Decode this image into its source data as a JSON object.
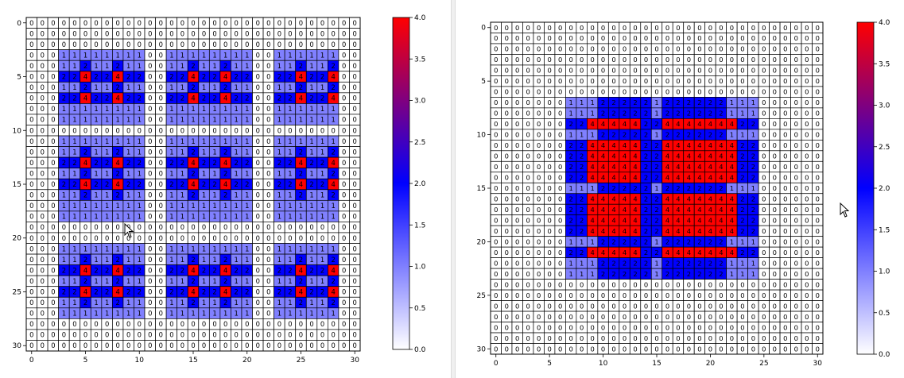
{
  "colors": {
    "cmap": [
      "#ffffff",
      "#0000ff",
      "#ff0000"
    ],
    "grid": "#000000",
    "text": "#000000",
    "divider": "#f0f0f0"
  },
  "chart_data": [
    {
      "type": "heatmap",
      "title": "",
      "xlabel": "",
      "ylabel": "",
      "rows": 31,
      "cols": 31,
      "xticks": [
        0,
        5,
        10,
        15,
        20,
        25,
        30
      ],
      "yticks": [
        0,
        5,
        10,
        15,
        20,
        25,
        30
      ],
      "vmin": 0,
      "vmax": 4,
      "annotated": true,
      "colorbar": {
        "ticks": [
          "0.0",
          "0.5",
          "1.0",
          "1.5",
          "2.0",
          "2.5",
          "3.0",
          "3.5",
          "4.0"
        ],
        "colormap": "white-blue-red"
      },
      "grid_rows": [
        "0000000000000000000000000000000",
        "0000000000000000000000000000000",
        "0000000000000000000000000000000",
        "0001111111100111111110011111100",
        "0001121121100112112110011211200",
        "0002242242200224224220022422400",
        "0001121121100112112110011211200",
        "0002242242200224224220022422400",
        "0001111111100111111110011111100",
        "0001111111100111111110011111100",
        "0000000000000000000000000000000",
        "0001111111100111111110011111100",
        "0001121121100112112110011211200",
        "0002242242200224224220022422400",
        "0001121121100112112110011211200",
        "0002242242200224224220022422400",
        "0001121121100112112110011211200",
        "0001111111100111111110011111100",
        "0001111111100111111110011111100",
        "0000000000000000000000000000000",
        "0000000000000000000000000000000",
        "0001111111100111111110011111100",
        "0001121121100112112110011211200",
        "0002242242200224224220022422400",
        "0001121121100112112110011211200",
        "0002242242200224224220022422400",
        "0001121121100112112110011211200",
        "0001111111100111111110011111100",
        "0000000000000000000000000000000",
        "0000000000000000000000000000000",
        "0000000000000000000000000000000"
      ]
    },
    {
      "type": "heatmap",
      "title": "",
      "xlabel": "",
      "ylabel": "",
      "rows": 31,
      "cols": 31,
      "xticks": [
        0,
        5,
        10,
        15,
        20,
        25,
        30
      ],
      "yticks": [
        0,
        5,
        10,
        15,
        20,
        25,
        30
      ],
      "vmin": 0,
      "vmax": 4,
      "annotated": true,
      "colorbar": {
        "ticks": [
          "0.0",
          "0.5",
          "1.0",
          "1.5",
          "2.0",
          "2.5",
          "3.0",
          "3.5",
          "4.0"
        ],
        "colormap": "white-blue-red"
      },
      "grid_rows": [
        "0000000000000000000000000000000",
        "0000000000000000000000000000000",
        "0000000000000000000000000000000",
        "0000000000000000000000000000000",
        "0000000000000000000000000000000",
        "0000000000000000000000000000000",
        "0000000000000000000000000000000",
        "0000000111222221222222111000000",
        "0000000111222221222222111000000",
        "0000000224444422444444422000000",
        "0000000111222221222222111000000",
        "0000000224444422444444422000000",
        "0000000224444422444444422000000",
        "0000000224444422444444422000000",
        "0000000224444422444444422000000",
        "0000000111222221222222111000000",
        "0000000224444422444444422000000",
        "0000000224444422444444422000000",
        "0000000224444422444444422000000",
        "0000000224444422444444422000000",
        "0000000111222221222222111000000",
        "0000000224444422444444422000000",
        "0000000111222221222222111000000",
        "0000000111222221222222111000000",
        "0000000000000000000000000000000",
        "0000000000000000000000000000000",
        "0000000000000000000000000000000",
        "0000000000000000000000000000000",
        "0000000000000000000000000000000",
        "0000000000000000000000000000000",
        "0000000000000000000000000000000"
      ]
    }
  ]
}
